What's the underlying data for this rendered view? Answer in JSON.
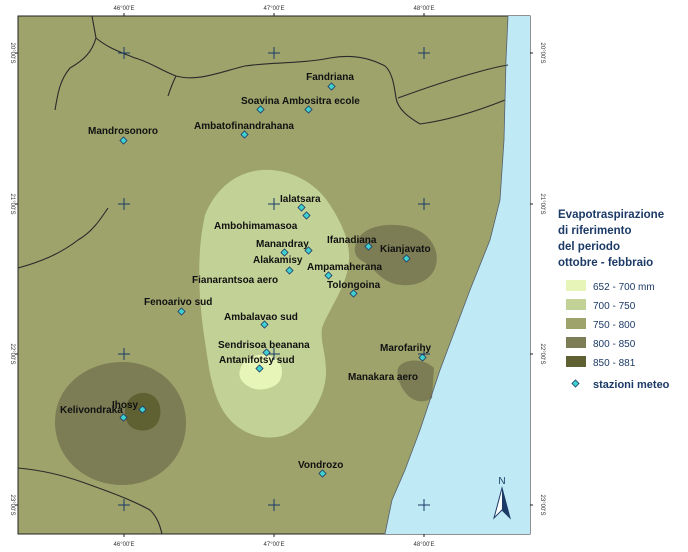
{
  "colors": {
    "background": "#9da36b",
    "sea": "#bfe9f4",
    "class_652_700": "#e8f5b8",
    "class_700_750": "#c2d296",
    "class_750_800": "#9da36b",
    "class_800_850": "#7c7d54",
    "class_850_881": "#5f6133",
    "station": "#3fd0d0"
  },
  "graticule": {
    "lon_labels": [
      "46°00'E",
      "47°00'E",
      "48°00'E"
    ],
    "lat_labels": [
      "20°00'S",
      "21°00'S",
      "22°00'S",
      "23°00'S"
    ]
  },
  "stations": [
    {
      "name": "Fandriana"
    },
    {
      "name": "Soavina"
    },
    {
      "name": "Ambositra ecole"
    },
    {
      "name": "Mandrosonoro"
    },
    {
      "name": "Ambatofinandrahana"
    },
    {
      "name": "Ialatsara"
    },
    {
      "name": "Ambohimamasoa"
    },
    {
      "name": "Ifanadiana"
    },
    {
      "name": "Kianjavato"
    },
    {
      "name": "Manandray"
    },
    {
      "name": "Alakamisy"
    },
    {
      "name": "Ampamaherana"
    },
    {
      "name": "Fianarantsoa aero"
    },
    {
      "name": "Tolongoina"
    },
    {
      "name": "Fenoarivo sud"
    },
    {
      "name": "Ambalavao sud"
    },
    {
      "name": "Sendrisoa beanana"
    },
    {
      "name": "Antanifotsy sud"
    },
    {
      "name": "Marofarihy"
    },
    {
      "name": "Manakara aero"
    },
    {
      "name": "Ihosy"
    },
    {
      "name": "Kelivondraka"
    },
    {
      "name": "Vondrozo"
    }
  ],
  "legend": {
    "title_lines": [
      "Evapotraspirazione",
      "di riferimento",
      "del periodo",
      "ottobre - febbraio"
    ],
    "classes": [
      "652 - 700 mm",
      "700 - 750",
      "750 - 800",
      "800 - 850",
      "850 - 881"
    ],
    "station_label": "stazioni meteo"
  },
  "north_arrow": {
    "label": "N"
  }
}
